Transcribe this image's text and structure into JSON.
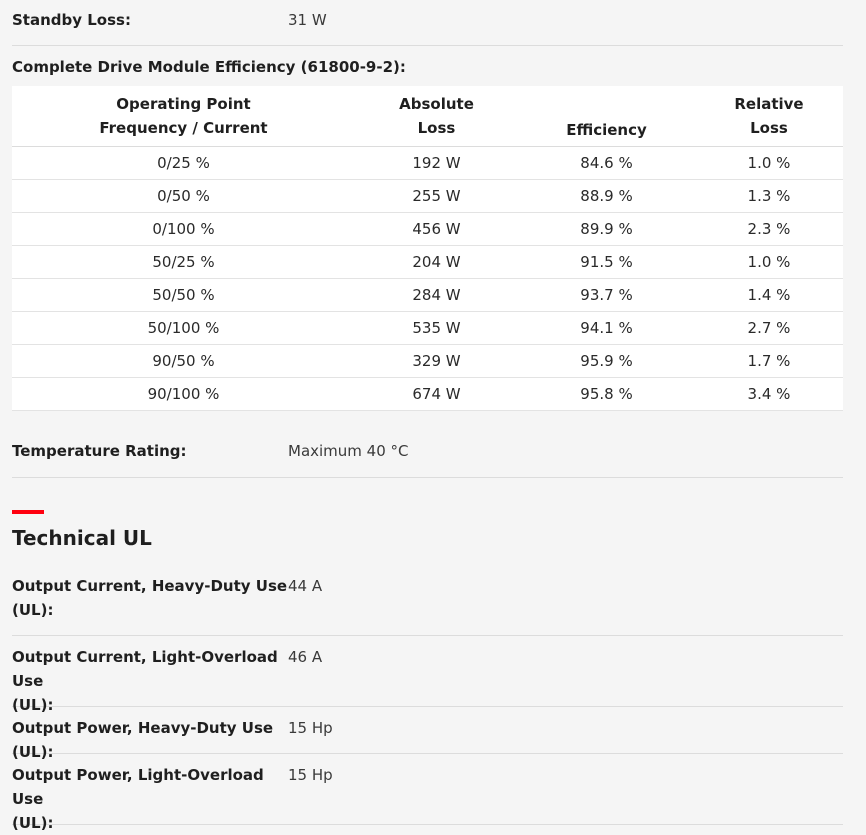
{
  "standby": {
    "label": "Standby Loss:",
    "value": "31 W"
  },
  "efficiency": {
    "title": "Complete Drive Module Efficiency (61800-9-2):",
    "headers": {
      "col1_line1": "Operating Point",
      "col1_line2": "Frequency / Current",
      "col2_line1": "Absolute",
      "col2_line2": "Loss",
      "col3": "Efficiency",
      "col4_line1": "Relative",
      "col4_line2": "Loss"
    },
    "rows": [
      {
        "point": "0/25 %",
        "abs_loss": "192 W",
        "efficiency": "84.6 %",
        "rel_loss": "1.0 %"
      },
      {
        "point": "0/50 %",
        "abs_loss": "255 W",
        "efficiency": "88.9 %",
        "rel_loss": "1.3 %"
      },
      {
        "point": "0/100 %",
        "abs_loss": "456 W",
        "efficiency": "89.9 %",
        "rel_loss": "2.3 %"
      },
      {
        "point": "50/25 %",
        "abs_loss": "204 W",
        "efficiency": "91.5 %",
        "rel_loss": "1.0 %"
      },
      {
        "point": "50/50 %",
        "abs_loss": "284 W",
        "efficiency": "93.7 %",
        "rel_loss": "1.4 %"
      },
      {
        "point": "50/100 %",
        "abs_loss": "535 W",
        "efficiency": "94.1 %",
        "rel_loss": "2.7 %"
      },
      {
        "point": "90/50 %",
        "abs_loss": "329 W",
        "efficiency": "95.9 %",
        "rel_loss": "1.7 %"
      },
      {
        "point": "90/100 %",
        "abs_loss": "674 W",
        "efficiency": "95.8 %",
        "rel_loss": "3.4 %"
      }
    ]
  },
  "temperature": {
    "label": "Temperature Rating:",
    "value": "Maximum 40 °C"
  },
  "technical_ul": {
    "title": "Technical UL",
    "accent_color": "#ff000f",
    "items": [
      {
        "label_line1": "Output Current, Heavy-Duty Use",
        "label_line2": "(UL):",
        "value": "44 A"
      },
      {
        "label_line1": "Output Current, Light-Overload Use",
        "label_line2": "(UL):",
        "value": "46 A"
      },
      {
        "label_line1": "Output Power, Heavy-Duty Use (UL):",
        "label_line2": "",
        "value": "15 Hp"
      },
      {
        "label_line1": "Output Power, Light-Overload Use",
        "label_line2": "(UL):",
        "value": "15 Hp"
      }
    ]
  }
}
